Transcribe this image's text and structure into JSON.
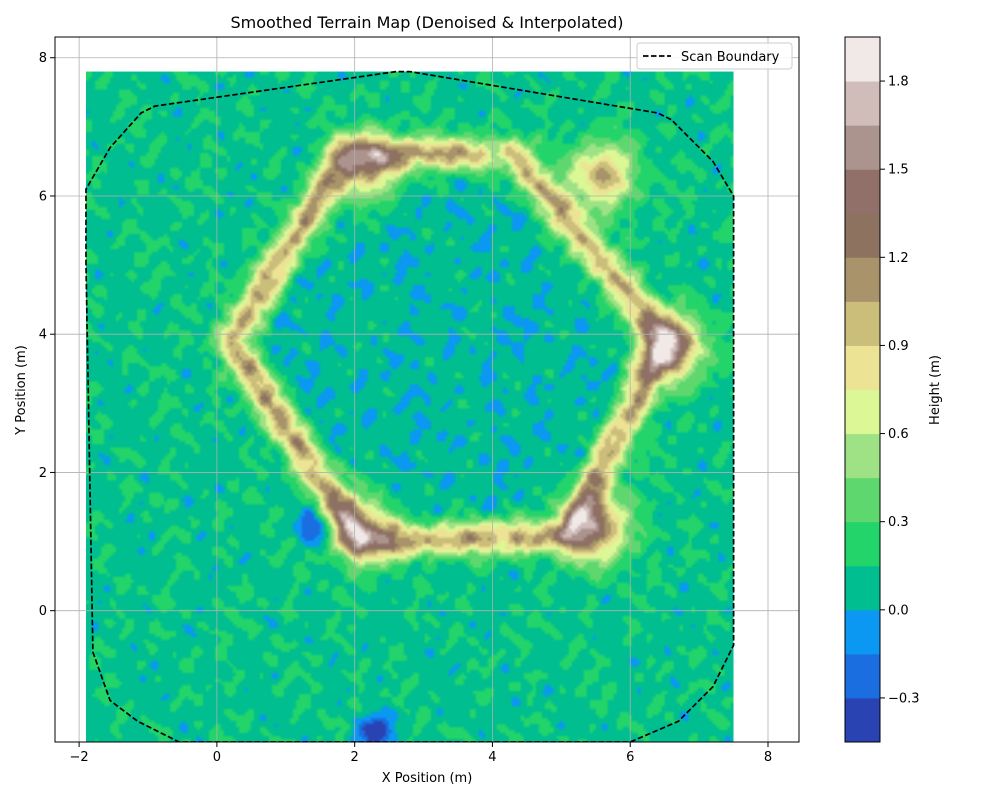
{
  "chart_data": {
    "type": "heatmap",
    "subtype": "filled-contour",
    "title": "Smoothed Terrain Map (Denoised & Interpolated)",
    "xlabel": "X Position (m)",
    "ylabel": "Y Position (m)",
    "xlim": [
      -2.35,
      8.45
    ],
    "ylim": [
      -1.9,
      8.3
    ],
    "xticks": [
      -2,
      0,
      2,
      4,
      6,
      8
    ],
    "yticks": [
      0,
      2,
      4,
      6,
      8
    ],
    "xtick_labels": [
      "−2",
      "0",
      "2",
      "4",
      "6",
      "8"
    ],
    "ytick_labels": [
      "0",
      "2",
      "4",
      "6",
      "8"
    ],
    "grid": true,
    "legend": {
      "placement": "top-right",
      "entries": [
        {
          "label": "Scan Boundary",
          "style": "dashed",
          "color": "#000000"
        }
      ]
    },
    "colorbar": {
      "label": "Height (m)",
      "levels": [
        -0.45,
        -0.3,
        -0.15,
        0.0,
        0.15,
        0.3,
        0.45,
        0.6,
        0.75,
        0.9,
        1.05,
        1.2,
        1.35,
        1.5,
        1.65,
        1.8,
        1.95
      ],
      "colors": [
        "#2a43b3",
        "#1a6ee0",
        "#0b98f2",
        "#00be90",
        "#22d46a",
        "#5ed86e",
        "#9ee285",
        "#dcf795",
        "#ece394",
        "#cbbe7a",
        "#a8936a",
        "#8d735f",
        "#907068",
        "#ac948e",
        "#d0bdb9",
        "#f0e9e8"
      ],
      "ticks": [
        -0.3,
        0.0,
        0.3,
        0.6,
        0.9,
        1.2,
        1.5,
        1.8
      ],
      "tick_labels": [
        "−0.3",
        "0.0",
        "0.3",
        "0.6",
        "0.9",
        "1.2",
        "1.5",
        "1.8"
      ]
    },
    "data_extent": {
      "x": [
        -1.9,
        7.5
      ],
      "y": [
        -1.9,
        7.8
      ]
    },
    "base_height": 0.05,
    "outer_height": 0.2,
    "ridge": {
      "vertices": [
        [
          1.9,
          6.6
        ],
        [
          4.3,
          6.6
        ],
        [
          6.5,
          3.9
        ],
        [
          5.1,
          1.1
        ],
        [
          2.1,
          1.0
        ],
        [
          0.2,
          3.9
        ]
      ],
      "height": 0.95
    },
    "peaks": [
      {
        "x": 2.15,
        "y": 6.4,
        "height": 1.45
      },
      {
        "x": 5.6,
        "y": 6.3,
        "height": 1.5
      },
      {
        "x": 6.6,
        "y": 3.8,
        "height": 1.7
      },
      {
        "x": 5.5,
        "y": 1.2,
        "height": 1.75
      },
      {
        "x": 2.1,
        "y": 1.2,
        "height": 1.45
      }
    ],
    "depressions": [
      {
        "x": 1.4,
        "y": 1.2,
        "height": -0.4
      },
      {
        "x": 4.1,
        "y": 6.6,
        "height": -0.3
      },
      {
        "x": 2.3,
        "y": -1.75,
        "height": -0.45
      }
    ],
    "scan_boundary": {
      "x": [
        -1.9,
        -1.9,
        -1.55,
        -1.1,
        -0.9,
        2.6,
        2.8,
        6.4,
        6.6,
        7.2,
        7.5,
        7.5,
        7.5,
        7.2,
        6.7,
        6.0,
        -0.55,
        -1.15,
        -1.55,
        -1.8,
        -1.9
      ],
      "y": [
        5.0,
        6.1,
        6.7,
        7.2,
        7.3,
        7.8,
        7.8,
        7.2,
        7.1,
        6.5,
        6.0,
        3.0,
        -0.5,
        -1.1,
        -1.6,
        -1.9,
        -1.9,
        -1.6,
        -1.3,
        -0.6,
        5.0
      ]
    }
  }
}
